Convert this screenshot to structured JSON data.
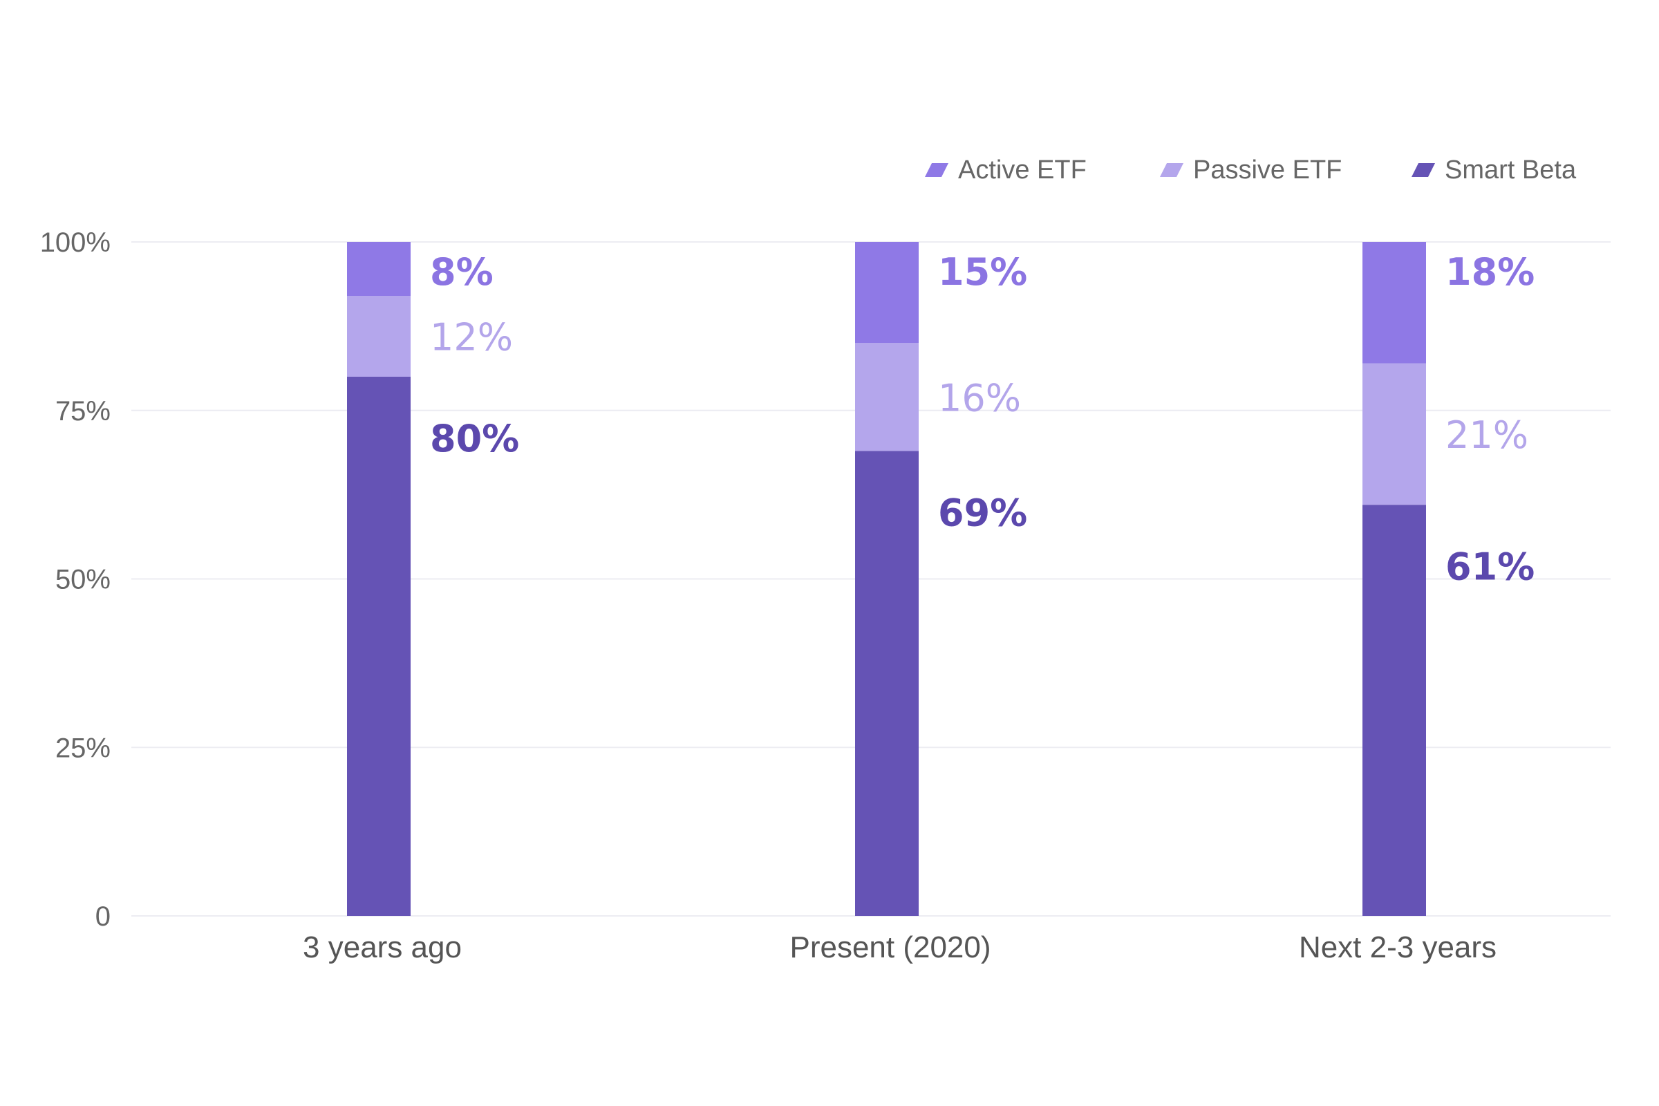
{
  "chart_data": {
    "type": "bar",
    "stacked": true,
    "categories": [
      "3 years ago",
      "Present (2020)",
      "Next 2-3 years"
    ],
    "series": [
      {
        "name": "Smart Beta",
        "values": [
          80,
          69,
          61
        ],
        "color": "#6553b5",
        "labels": [
          "80%",
          "69%",
          "61%"
        ]
      },
      {
        "name": "Passive ETF",
        "values": [
          12,
          16,
          21
        ],
        "color": "#b4a6ec",
        "labels": [
          "12%",
          "16%",
          "21%"
        ]
      },
      {
        "name": "Active ETF",
        "values": [
          8,
          15,
          18
        ],
        "color": "#8f79e6",
        "labels": [
          "8%",
          "15%",
          "18%"
        ]
      }
    ],
    "legend": [
      "Active ETF",
      "Passive ETF",
      "Smart Beta"
    ],
    "legend_position": "top-right",
    "y_ticks": [
      {
        "value": 0,
        "label": "0"
      },
      {
        "value": 25,
        "label": "25%"
      },
      {
        "value": 50,
        "label": "50%"
      },
      {
        "value": 75,
        "label": "75%"
      },
      {
        "value": 100,
        "label": "100%"
      }
    ],
    "ylim": [
      0,
      100
    ],
    "grid": true,
    "title": "",
    "xlabel": "",
    "ylabel": ""
  }
}
